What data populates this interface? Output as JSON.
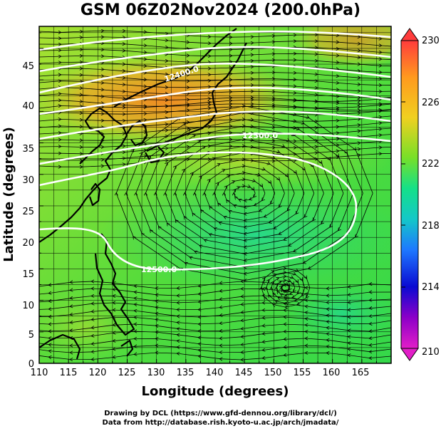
{
  "title": "GSM 06Z02Nov2024 (200.0hPa)",
  "axes": {
    "xlabel": "Longitude (degrees)",
    "ylabel": "Latitude  (degrees)",
    "x_ticks": [
      "110",
      "115",
      "120",
      "125",
      "130",
      "135",
      "140",
      "145",
      "150",
      "155",
      "160",
      "165"
    ],
    "y_ticks": [
      "0",
      "5",
      "10",
      "15",
      "20",
      "25",
      "30",
      "35",
      "40",
      "45"
    ]
  },
  "colorbar": {
    "labels": [
      "230",
      "226",
      "222",
      "218",
      "214",
      "210"
    ],
    "colors": [
      "#ff3c3c",
      "#ff9a1e",
      "#f0d020",
      "#78e028",
      "#14e088",
      "#14c8c8",
      "#1e78ff",
      "#0a0ad2",
      "#8c00c8",
      "#e21ec8"
    ]
  },
  "contours": [
    {
      "label": "12500.0"
    },
    {
      "label": "12500.0"
    },
    {
      "label": "12400.0"
    }
  ],
  "credits": [
    "Drawing by DCL (https://www.gfd-dennou.org/library/dcl/)",
    "Data from http://database.rish.kyoto-u.ac.jp/arch/jmadata/"
  ],
  "chart_data": {
    "type": "map",
    "title": "GSM 06Z02Nov2024 (200.0hPa)",
    "xlabel": "Longitude (degrees)",
    "ylabel": "Latitude  (degrees)",
    "xlim": [
      110,
      170
    ],
    "ylim": [
      0,
      50
    ],
    "field_colorbar": {
      "min": 210,
      "max": 230,
      "ticks": [
        210,
        214,
        218,
        222,
        226,
        230
      ]
    },
    "features": [
      "temperature shading",
      "streamlines",
      "geopotential height contours",
      "coastlines"
    ]
  }
}
